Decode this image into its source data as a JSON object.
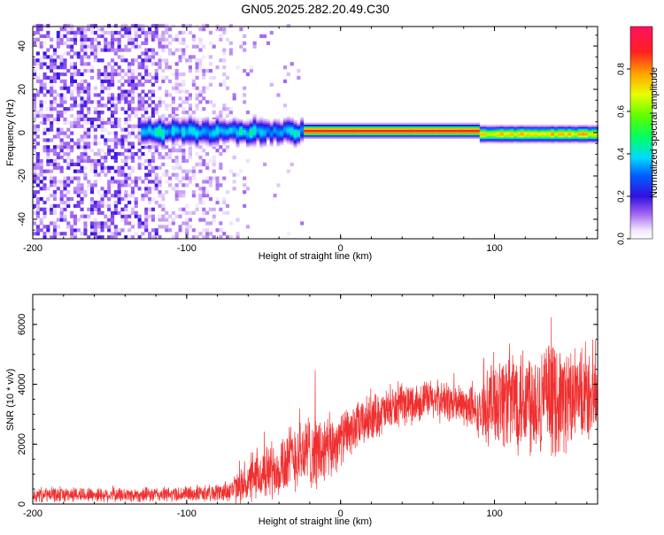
{
  "title": "GN05.2025.282.20.49.C30",
  "chart_data": [
    {
      "type": "heatmap",
      "xlabel": "Height of straight line (km)",
      "ylabel": "Frequency (Hz)",
      "xlim": [
        -200,
        167
      ],
      "ylim": [
        -49,
        49
      ],
      "xticks": [
        "-200",
        "-100",
        "0",
        "100"
      ],
      "yticks": [
        "-40",
        "-20",
        "0",
        "20",
        "40"
      ],
      "colorbar": {
        "label": "Normalized spectral amplitude",
        "range": [
          0,
          1
        ],
        "ticks": [
          "0.0",
          "0.2",
          "0.4",
          "0.6",
          "0.8"
        ]
      },
      "regions": [
        {
          "x": [
            -200,
            -70
          ],
          "description": "broadband noise, amplitude ~0.1-0.25 across all frequencies"
        },
        {
          "x": [
            -130,
            -25
          ],
          "center_freq": 0,
          "amplitude": 0.4
        },
        {
          "x": [
            -25,
            90
          ],
          "center_freq": 0,
          "amplitude": 0.9
        },
        {
          "x": [
            90,
            167
          ],
          "center_freq": -1,
          "amplitude": 0.7
        }
      ]
    },
    {
      "type": "line",
      "xlabel": "Height of straight line (km)",
      "ylabel": "SNR (10 * v/v)",
      "xlim": [
        -200,
        167
      ],
      "ylim": [
        0,
        7000
      ],
      "xticks": [
        "-200",
        "-100",
        "0",
        "100"
      ],
      "yticks": [
        "0",
        "2000",
        "4000",
        "6000"
      ],
      "series": [
        {
          "color": "#f03030",
          "envelope": {
            "x": [
              -200,
              -170,
              -140,
              -110,
              -80,
              -70,
              -60,
              -50,
              -40,
              -30,
              -20,
              -10,
              0,
              20,
              40,
              60,
              80,
              90,
              100,
              120,
              140,
              160,
              167
            ],
            "mean": [
              300,
              320,
              300,
              320,
              380,
              480,
              700,
              1000,
              1300,
              1600,
              1800,
              1700,
              2200,
              2900,
              3300,
              3500,
              3300,
              3000,
              3500,
              3600,
              3500,
              3500,
              3600
            ],
            "amp": [
              250,
              260,
              250,
              260,
              300,
              450,
              700,
              900,
              1100,
              1200,
              1300,
              1300,
              900,
              800,
              700,
              700,
              700,
              800,
              1600,
              2000,
              1900,
              1500,
              1300
            ]
          }
        }
      ]
    }
  ]
}
